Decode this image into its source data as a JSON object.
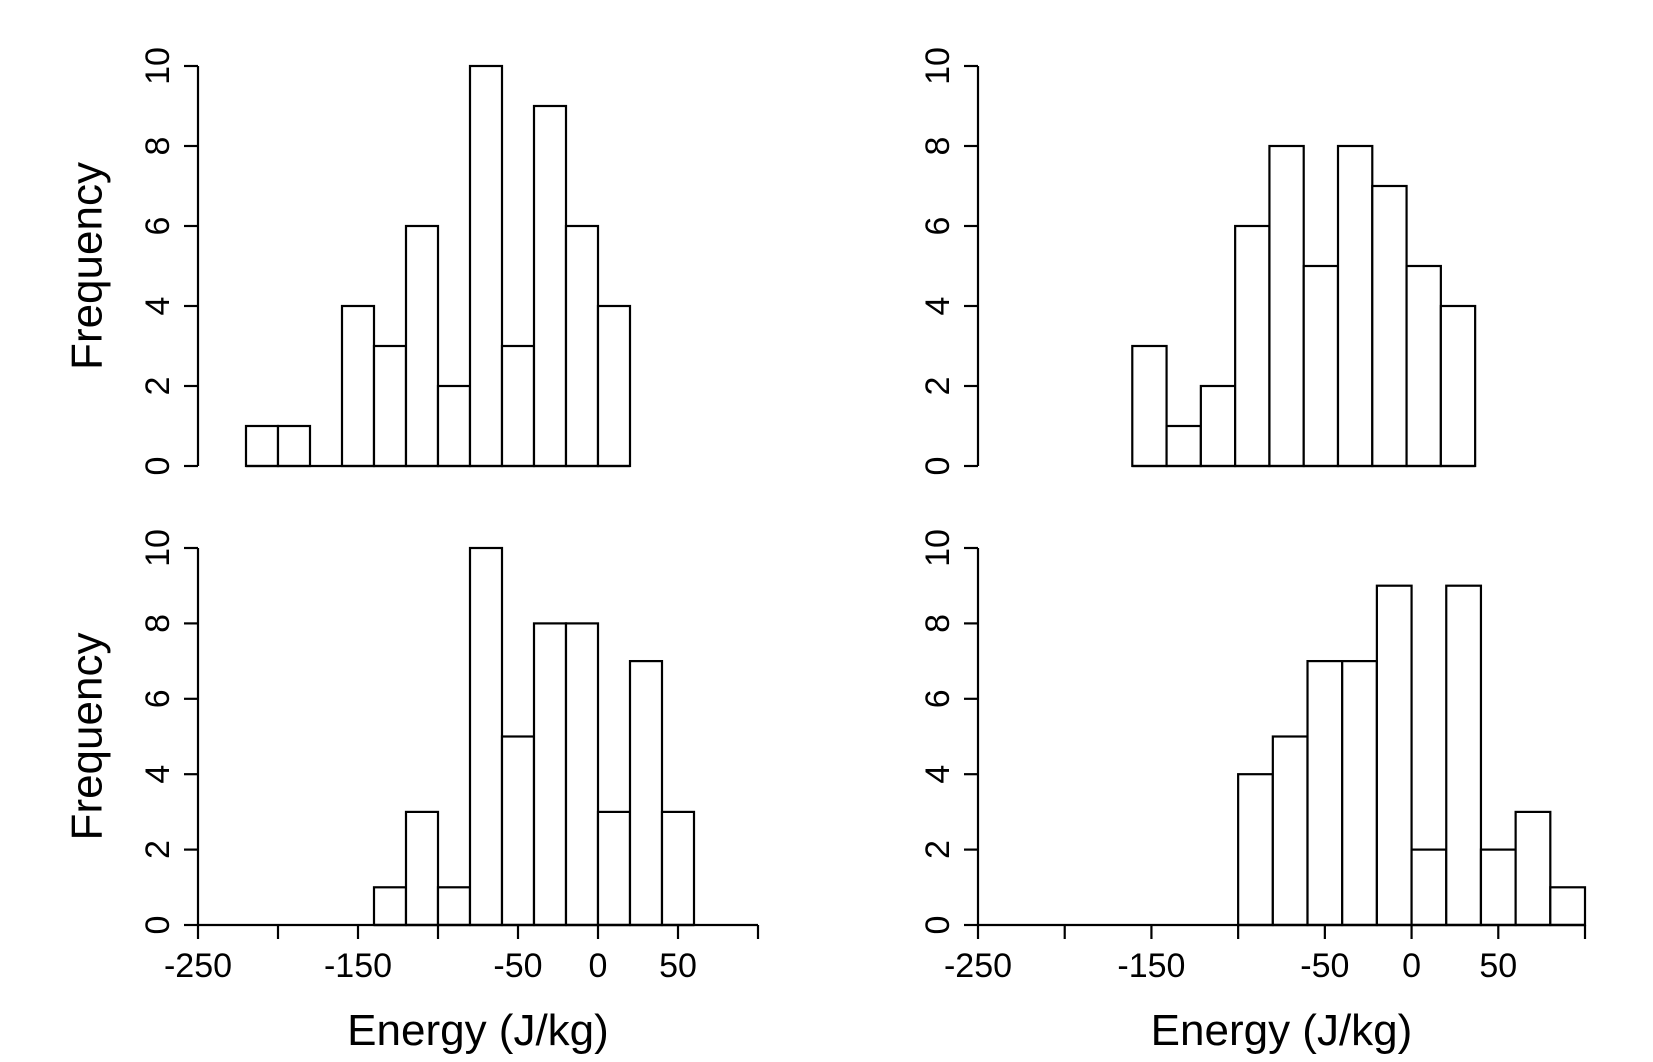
{
  "chart_data": [
    {
      "type": "bar",
      "panel": "top-left",
      "bin_width": 20,
      "bin_starts": [
        -220,
        -200,
        -180,
        -160,
        -140,
        -120,
        -100,
        -80,
        -60,
        -40,
        -20,
        0
      ],
      "values": [
        1,
        1,
        0,
        4,
        3,
        6,
        2,
        10,
        3,
        9,
        6,
        4
      ],
      "ylabel": "Frequency",
      "xlabel": "",
      "ylim": [
        0,
        10
      ],
      "yticks": [
        "0",
        "2",
        "4",
        "6",
        "8",
        "10"
      ],
      "xticks": []
    },
    {
      "type": "bar",
      "panel": "top-right",
      "bin_width": 20,
      "bin_starts": [
        -160,
        -140,
        -120,
        -100,
        -80,
        -60,
        -40,
        -20,
        0,
        20
      ],
      "values": [
        3,
        1,
        2,
        6,
        8,
        5,
        8,
        7,
        5,
        4
      ],
      "ylabel": "",
      "xlabel": "",
      "ylim": [
        0,
        10
      ],
      "yticks": [
        "0",
        "2",
        "4",
        "6",
        "8",
        "10"
      ],
      "xticks": []
    },
    {
      "type": "bar",
      "panel": "bottom-left",
      "bin_width": 20,
      "bin_starts": [
        -140,
        -120,
        -100,
        -80,
        -60,
        -40,
        -20,
        0,
        20,
        40
      ],
      "values": [
        1,
        3,
        1,
        10,
        5,
        8,
        8,
        3,
        7,
        3
      ],
      "ylabel": "Frequency",
      "xlabel": "Energy (J/kg)",
      "ylim": [
        0,
        10
      ],
      "yticks": [
        "0",
        "2",
        "4",
        "6",
        "8",
        "10"
      ],
      "xlim": [
        -250,
        100
      ],
      "xtick_values": [
        -250,
        -200,
        -150,
        -100,
        -50,
        0,
        50,
        100
      ],
      "xtick_labels": [
        "-250",
        "",
        "-150",
        "",
        "-50",
        "0",
        "50",
        ""
      ]
    },
    {
      "type": "bar",
      "panel": "bottom-right",
      "bin_width": 20,
      "bin_starts": [
        -100,
        -80,
        -60,
        -40,
        -20,
        0,
        20,
        40,
        60,
        80
      ],
      "values": [
        4,
        5,
        7,
        7,
        9,
        2,
        9,
        2,
        3,
        1
      ],
      "ylabel": "",
      "xlabel": "Energy (J/kg)",
      "ylim": [
        0,
        10
      ],
      "yticks": [
        "0",
        "2",
        "4",
        "6",
        "8",
        "10"
      ],
      "xlim": [
        -250,
        100
      ],
      "xtick_values": [
        -250,
        -200,
        -150,
        -100,
        -50,
        0,
        50,
        100
      ],
      "xtick_labels": [
        "-250",
        "",
        "-150",
        "",
        "-50",
        "0",
        "50",
        ""
      ]
    }
  ]
}
